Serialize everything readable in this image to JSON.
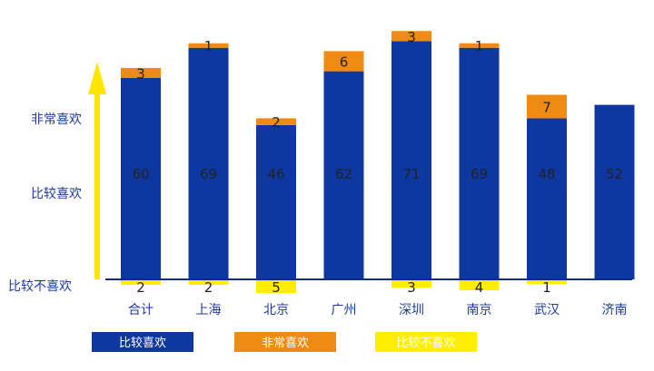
{
  "colors": {
    "blue": "#0e37a0",
    "orange": "#ef8b12",
    "yellow": "#ffee00",
    "text_blue": "#1d3a9e",
    "arrow": "#ffe600",
    "baseline": "#0e2d8a"
  },
  "scale_labels": {
    "top": "非常喜欢",
    "middle": "比较喜欢",
    "bottom": "比较不喜欢"
  },
  "legend": [
    {
      "label": "比较喜欢",
      "color": "#0e37a0"
    },
    {
      "label": "非常喜欢",
      "color": "#ef8b12"
    },
    {
      "label": "比较不喜欢",
      "color": "#ffee00"
    }
  ],
  "chart_data": {
    "type": "bar",
    "stacked": true,
    "categories": [
      "合计",
      "上海",
      "北京",
      "广州",
      "深圳",
      "南京",
      "武汉",
      "济南"
    ],
    "series": [
      {
        "name": "比较喜欢",
        "values": [
          60,
          69,
          46,
          62,
          71,
          69,
          48,
          52
        ]
      },
      {
        "name": "非常喜欢",
        "values": [
          3,
          1,
          2,
          6,
          3,
          1,
          7,
          0
        ]
      },
      {
        "name": "比较不喜欢",
        "values": [
          2,
          2,
          5,
          0,
          3,
          4,
          1,
          0
        ],
        "direction": "below_axis"
      }
    ],
    "ylim": [
      -5,
      75
    ],
    "grid": false,
    "legend_position": "bottom"
  }
}
